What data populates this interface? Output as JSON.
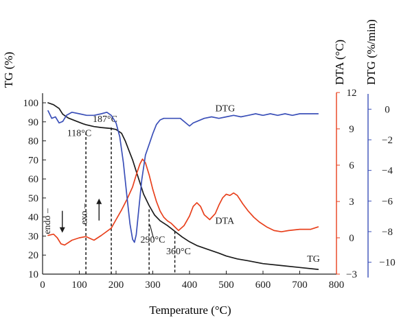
{
  "chart_data": {
    "type": "line",
    "xlabel": "Temperature (°C)",
    "x_ticks": [
      0,
      100,
      200,
      300,
      400,
      500,
      600,
      700,
      800
    ],
    "xlim": [
      0,
      800
    ],
    "axes": {
      "tg": {
        "label": "TG (%)",
        "ylim": [
          10,
          100
        ],
        "ticks": [
          10,
          20,
          30,
          40,
          50,
          60,
          70,
          80,
          90,
          100
        ],
        "color": "#1a1a1a"
      },
      "dta": {
        "label": "DTA (°C)",
        "ylim": [
          -3,
          12
        ],
        "ticks": [
          -3,
          0,
          3,
          6,
          9,
          12
        ],
        "color": "#e8401c"
      },
      "dtg": {
        "label": "DTG (%/min)",
        "ylim": [
          -11,
          1
        ],
        "ticks": [
          0,
          -2,
          -4,
          -6,
          -8,
          -10
        ],
        "color": "#3a4fb8"
      }
    },
    "series": [
      {
        "name": "TG",
        "axis": "tg",
        "color": "#1a1a1a",
        "x": [
          15,
          30,
          45,
          55,
          70,
          90,
          110,
          118,
          140,
          160,
          187,
          200,
          215,
          225,
          235,
          245,
          255,
          265,
          275,
          290,
          305,
          320,
          340,
          360,
          380,
          400,
          420,
          450,
          480,
          500,
          530,
          560,
          600,
          650,
          700,
          750
        ],
        "y": [
          100,
          99,
          97,
          94,
          92,
          90.5,
          89,
          88.5,
          87.5,
          87,
          86.5,
          86,
          84,
          80,
          75,
          70,
          64,
          58,
          52,
          46,
          41,
          38,
          35.5,
          32.5,
          29.5,
          27,
          25,
          23,
          21,
          19.5,
          18,
          17,
          15.5,
          14.5,
          13.5,
          12.5
        ]
      },
      {
        "name": "DTA",
        "axis": "dta",
        "color": "#e8401c",
        "x": [
          15,
          30,
          40,
          50,
          60,
          80,
          100,
          118,
          140,
          160,
          187,
          200,
          215,
          230,
          245,
          255,
          265,
          272,
          280,
          290,
          300,
          310,
          320,
          330,
          340,
          350,
          360,
          370,
          385,
          400,
          410,
          420,
          430,
          440,
          455,
          470,
          480,
          490,
          500,
          510,
          520,
          530,
          545,
          560,
          575,
          590,
          610,
          630,
          650,
          670,
          700,
          730,
          750
        ],
        "y": [
          0.2,
          0.3,
          0,
          -0.5,
          -0.6,
          -0.2,
          0,
          0.1,
          -0.2,
          0.2,
          0.8,
          1.5,
          2.3,
          3.2,
          4.2,
          5.2,
          6.1,
          6.5,
          6.2,
          5.2,
          4,
          3,
          2.2,
          1.7,
          1.4,
          1.2,
          0.9,
          0.6,
          1,
          1.8,
          2.6,
          2.9,
          2.6,
          1.9,
          1.5,
          2,
          2.7,
          3.3,
          3.6,
          3.5,
          3.7,
          3.5,
          2.8,
          2.2,
          1.7,
          1.3,
          0.9,
          0.6,
          0.5,
          0.6,
          0.7,
          0.7,
          0.9
        ]
      },
      {
        "name": "DTG",
        "axis": "dtg",
        "color": "#3a4fb8",
        "x": [
          15,
          25,
          35,
          45,
          55,
          65,
          80,
          100,
          120,
          140,
          160,
          175,
          187,
          200,
          210,
          220,
          230,
          238,
          245,
          250,
          255,
          262,
          270,
          280,
          290,
          300,
          310,
          320,
          330,
          345,
          360,
          375,
          390,
          400,
          410,
          420,
          440,
          460,
          480,
          500,
          520,
          540,
          560,
          580,
          600,
          620,
          640,
          660,
          680,
          700,
          720,
          740,
          750
        ],
        "y": [
          -0.1,
          -0.6,
          -0.5,
          -0.9,
          -0.8,
          -0.4,
          -0.2,
          -0.3,
          -0.4,
          -0.4,
          -0.3,
          -0.2,
          -0.4,
          -0.9,
          -1.8,
          -3.5,
          -5.8,
          -7.5,
          -8.5,
          -8.7,
          -8.2,
          -6.5,
          -4.6,
          -3,
          -2.3,
          -1.6,
          -1,
          -0.7,
          -0.6,
          -0.6,
          -0.6,
          -0.6,
          -0.9,
          -1.1,
          -0.9,
          -0.8,
          -0.6,
          -0.5,
          -0.6,
          -0.5,
          -0.4,
          -0.5,
          -0.4,
          -0.3,
          -0.4,
          -0.3,
          -0.4,
          -0.3,
          -0.4,
          -0.3,
          -0.3,
          -0.3,
          -0.3
        ]
      }
    ],
    "series_labels": [
      {
        "text": "DTG",
        "x": 470,
        "axis": "tg",
        "y": 95.5
      },
      {
        "text": "DTA",
        "x": 470,
        "axis": "tg",
        "y": 36.5
      },
      {
        "text": "TG",
        "x": 720,
        "axis": "tg",
        "y": 16.5
      }
    ],
    "markers": [
      {
        "temp": 118,
        "text": "118°C",
        "label_x": 100,
        "label_y": 82.5,
        "top": 84.5
      },
      {
        "temp": 187,
        "text": "187°C",
        "label_x": 170,
        "label_y": 90,
        "top": 87
      },
      {
        "temp": 290,
        "text": "290°C",
        "label_x": 300,
        "label_y": 26.5,
        "top": 44
      },
      {
        "temp": 360,
        "text": "360°C",
        "label_x": 370,
        "label_y": 20.5,
        "top": 32.5
      }
    ],
    "annotations": [
      {
        "text": "endo",
        "arrow": "down",
        "x": 50,
        "y": 31
      },
      {
        "text": "exo",
        "arrow": "up",
        "x": 150,
        "y": 36
      }
    ]
  }
}
